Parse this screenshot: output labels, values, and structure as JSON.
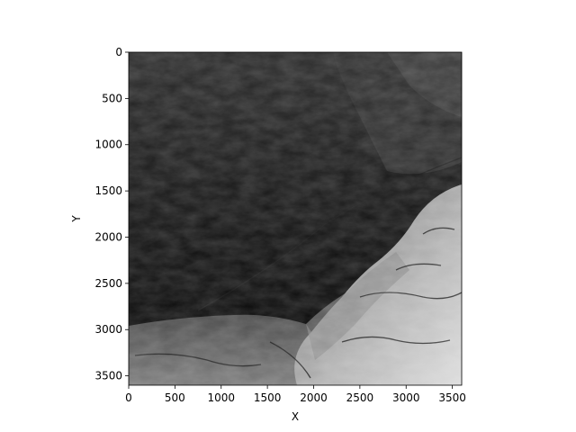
{
  "chart_data": {
    "type": "heatmap",
    "colormap": "gray",
    "xlabel": "X",
    "ylabel": "Y",
    "xlim": [
      0,
      3601
    ],
    "ylim": [
      3601,
      0
    ],
    "y_axis_inverted": true,
    "grid": false,
    "legend": "none",
    "x_ticks": [
      {
        "value": 0,
        "label": "0"
      },
      {
        "value": 500,
        "label": "500"
      },
      {
        "value": 1000,
        "label": "1000"
      },
      {
        "value": 1500,
        "label": "1500"
      },
      {
        "value": 2000,
        "label": "2000"
      },
      {
        "value": 2500,
        "label": "2500"
      },
      {
        "value": 3000,
        "label": "3000"
      },
      {
        "value": 3500,
        "label": "3500"
      }
    ],
    "y_ticks": [
      {
        "value": 0,
        "label": "0"
      },
      {
        "value": 500,
        "label": "500"
      },
      {
        "value": 1000,
        "label": "1000"
      },
      {
        "value": 1500,
        "label": "1500"
      },
      {
        "value": 2000,
        "label": "2000"
      },
      {
        "value": 2500,
        "label": "2500"
      },
      {
        "value": 3000,
        "label": "3000"
      },
      {
        "value": 3500,
        "label": "3500"
      }
    ],
    "image_description_regions": [
      {
        "feature": "dark lowland basin",
        "x_range": [
          0,
          2600
        ],
        "y_range": [
          300,
          2900
        ],
        "intensity": 0.05
      },
      {
        "feature": "bright ridged highlands",
        "x_range": [
          2100,
          3601
        ],
        "y_range": [
          1500,
          3601
        ],
        "intensity": 0.75
      },
      {
        "feature": "mid-gray terrain band",
        "x_range": [
          0,
          2400
        ],
        "y_range": [
          2850,
          3601
        ],
        "intensity": 0.4
      },
      {
        "feature": "mid-dark upper plateau",
        "x_range": [
          2300,
          3601
        ],
        "y_range": [
          0,
          1400
        ],
        "intensity": 0.2
      }
    ]
  }
}
